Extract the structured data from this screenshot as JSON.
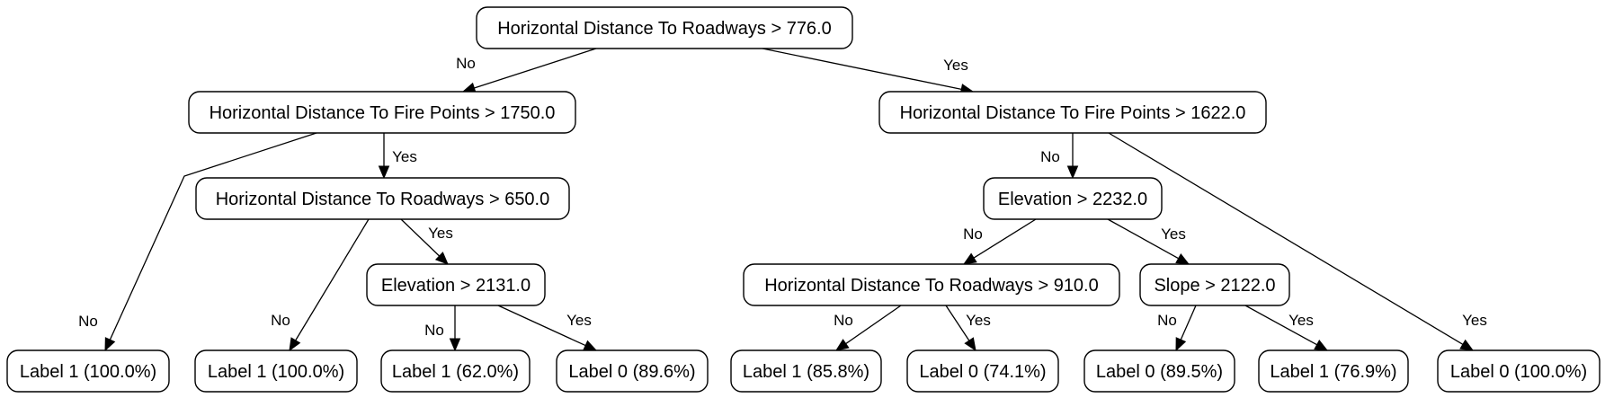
{
  "nodes": [
    {
      "id": "n0",
      "label": "Horizontal Distance To Roadways > 776.0"
    },
    {
      "id": "n1",
      "label": "Horizontal Distance To Fire Points > 1750.0"
    },
    {
      "id": "n2",
      "label": "Horizontal Distance To Fire Points > 1622.0"
    },
    {
      "id": "n3",
      "label": "Horizontal Distance To Roadways > 650.0"
    },
    {
      "id": "n4",
      "label": "Elevation > 2131.0"
    },
    {
      "id": "n5",
      "label": "Elevation > 2232.0"
    },
    {
      "id": "n6",
      "label": "Horizontal Distance To Roadways > 910.0"
    },
    {
      "id": "n7",
      "label": "Slope > 2122.0"
    },
    {
      "id": "l1",
      "label": "Label 1 (100.0%)"
    },
    {
      "id": "l2",
      "label": "Label 1 (100.0%)"
    },
    {
      "id": "l3",
      "label": "Label 1 (62.0%)"
    },
    {
      "id": "l4",
      "label": "Label 0 (89.6%)"
    },
    {
      "id": "l5",
      "label": "Label 1 (85.8%)"
    },
    {
      "id": "l6",
      "label": "Label 0 (74.1%)"
    },
    {
      "id": "l7",
      "label": "Label 0 (89.5%)"
    },
    {
      "id": "l8",
      "label": "Label 1 (76.9%)"
    },
    {
      "id": "l9",
      "label": "Label 0 (100.0%)"
    }
  ],
  "edges": [
    {
      "id": "e0",
      "from": "n0",
      "to": "n1",
      "label": "No"
    },
    {
      "id": "e1",
      "from": "n0",
      "to": "n2",
      "label": "Yes"
    },
    {
      "id": "e2",
      "from": "n1",
      "to": "l1",
      "label": "No"
    },
    {
      "id": "e3",
      "from": "n1",
      "to": "n3",
      "label": "Yes"
    },
    {
      "id": "e4",
      "from": "n3",
      "to": "l2",
      "label": "No"
    },
    {
      "id": "e5",
      "from": "n3",
      "to": "n4",
      "label": "Yes"
    },
    {
      "id": "e6",
      "from": "n4",
      "to": "l3",
      "label": "No"
    },
    {
      "id": "e7",
      "from": "n4",
      "to": "l4",
      "label": "Yes"
    },
    {
      "id": "e8",
      "from": "n2",
      "to": "n5",
      "label": "No"
    },
    {
      "id": "e9",
      "from": "n2",
      "to": "l9",
      "label": "Yes"
    },
    {
      "id": "e10",
      "from": "n5",
      "to": "n6",
      "label": "No"
    },
    {
      "id": "e11",
      "from": "n5",
      "to": "n7",
      "label": "Yes"
    },
    {
      "id": "e12",
      "from": "n6",
      "to": "l5",
      "label": "No"
    },
    {
      "id": "e13",
      "from": "n6",
      "to": "l6",
      "label": "Yes"
    },
    {
      "id": "e14",
      "from": "n7",
      "to": "l7",
      "label": "No"
    },
    {
      "id": "e15",
      "from": "n7",
      "to": "l8",
      "label": "Yes"
    }
  ]
}
